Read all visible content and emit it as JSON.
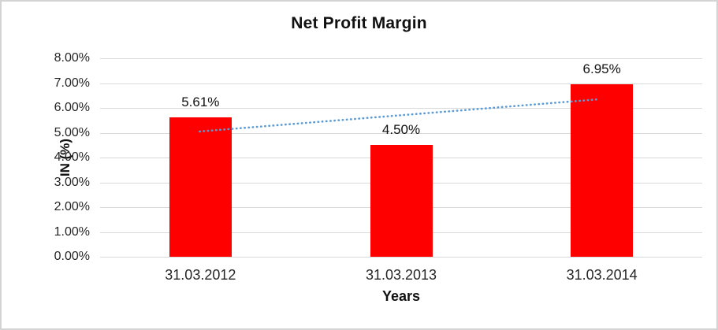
{
  "chart_data": {
    "type": "bar",
    "title": "Net Profit Margin",
    "xlabel": "Years",
    "ylabel": "IN (%)",
    "categories": [
      "31.03.2012",
      "31.03.2013",
      "31.03.2014"
    ],
    "values": [
      5.61,
      4.5,
      6.95
    ],
    "value_labels": [
      "5.61%",
      "4.50%",
      "6.95%"
    ],
    "y_ticks": [
      "0.00%",
      "1.00%",
      "2.00%",
      "3.00%",
      "4.00%",
      "5.00%",
      "6.00%",
      "7.00%",
      "8.00%"
    ],
    "y_tick_values": [
      0,
      1,
      2,
      3,
      4,
      5,
      6,
      7,
      8
    ],
    "ylim": [
      0,
      8
    ],
    "grid": true,
    "legend": "none",
    "bar_color": "#ff0000",
    "gridline_color": "#d9d9d9",
    "trendline": {
      "style": "dotted",
      "color": "#5b9bd5",
      "start_value": 5.05,
      "end_value": 6.35
    }
  }
}
